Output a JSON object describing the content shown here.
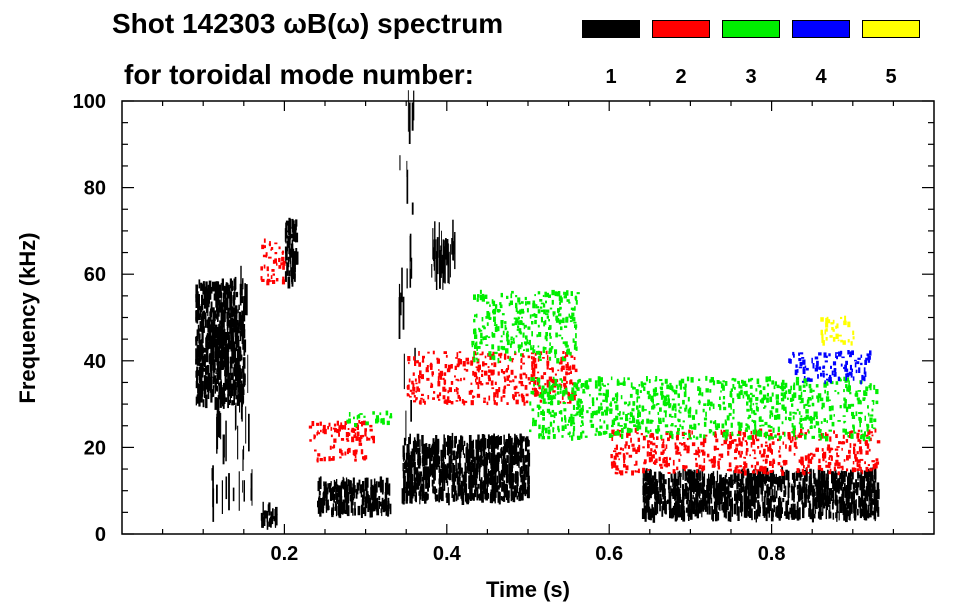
{
  "chart_data": {
    "type": "heatmap",
    "title_line1": "Shot 142303 ωB(ω) spectrum",
    "title_line2": "for toroidal mode number:",
    "xlabel": "Time (s)",
    "ylabel": "Frequency (kHz)",
    "xlim": [
      0.0,
      1.0
    ],
    "ylim": [
      0,
      100
    ],
    "x_ticks": [
      0.2,
      0.4,
      0.6,
      0.8
    ],
    "x_tick_labels": [
      "0.2",
      "0.4",
      "0.6",
      "0.8"
    ],
    "y_ticks": [
      0,
      20,
      40,
      60,
      80,
      100
    ],
    "y_tick_labels": [
      "0",
      "20",
      "40",
      "60",
      "80",
      "100"
    ],
    "legend": [
      {
        "mode": "1",
        "color": "#000000"
      },
      {
        "mode": "2",
        "color": "#ff0000"
      },
      {
        "mode": "3",
        "color": "#00ee00"
      },
      {
        "mode": "4",
        "color": "#0000ff"
      },
      {
        "mode": "5",
        "color": "#ffff00"
      }
    ],
    "features": [
      {
        "mode": 1,
        "t": [
          0.09,
          0.15
        ],
        "f": [
          30,
          58
        ],
        "kind": "blob"
      },
      {
        "mode": 1,
        "t": [
          0.11,
          0.16
        ],
        "f": [
          5,
          60
        ],
        "kind": "streaks"
      },
      {
        "mode": 1,
        "t": [
          0.2,
          0.215
        ],
        "f": [
          58,
          72
        ],
        "kind": "blob"
      },
      {
        "mode": 1,
        "t": [
          0.24,
          0.33
        ],
        "f": [
          5,
          12
        ],
        "kind": "blob"
      },
      {
        "mode": 1,
        "t": [
          0.345,
          0.5
        ],
        "f": [
          8,
          22
        ],
        "kind": "blob"
      },
      {
        "mode": 1,
        "t": [
          0.34,
          0.36
        ],
        "f": [
          5,
          100
        ],
        "kind": "streaks"
      },
      {
        "mode": 1,
        "t": [
          0.38,
          0.41
        ],
        "f": [
          60,
          68
        ],
        "kind": "streaks"
      },
      {
        "mode": 1,
        "t": [
          0.64,
          0.93
        ],
        "f": [
          4,
          14
        ],
        "kind": "blob"
      },
      {
        "mode": 1,
        "t": [
          0.17,
          0.19
        ],
        "f": [
          2,
          6
        ],
        "kind": "blob"
      },
      {
        "mode": 2,
        "t": [
          0.17,
          0.2
        ],
        "f": [
          58,
          68
        ],
        "kind": "band"
      },
      {
        "mode": 2,
        "t": [
          0.23,
          0.31
        ],
        "f": [
          17,
          26
        ],
        "kind": "band"
      },
      {
        "mode": 2,
        "t": [
          0.35,
          0.56
        ],
        "f": [
          30,
          42
        ],
        "kind": "band"
      },
      {
        "mode": 2,
        "t": [
          0.6,
          0.93
        ],
        "f": [
          14,
          24
        ],
        "kind": "band"
      },
      {
        "mode": 3,
        "t": [
          0.27,
          0.33
        ],
        "f": [
          25,
          28
        ],
        "kind": "band"
      },
      {
        "mode": 3,
        "t": [
          0.43,
          0.56
        ],
        "f": [
          40,
          56
        ],
        "kind": "band"
      },
      {
        "mode": 3,
        "t": [
          0.5,
          0.93
        ],
        "f": [
          22,
          36
        ],
        "kind": "band"
      },
      {
        "mode": 4,
        "t": [
          0.82,
          0.92
        ],
        "f": [
          35,
          42
        ],
        "kind": "band"
      },
      {
        "mode": 5,
        "t": [
          0.86,
          0.9
        ],
        "f": [
          44,
          50
        ],
        "kind": "band"
      }
    ]
  }
}
